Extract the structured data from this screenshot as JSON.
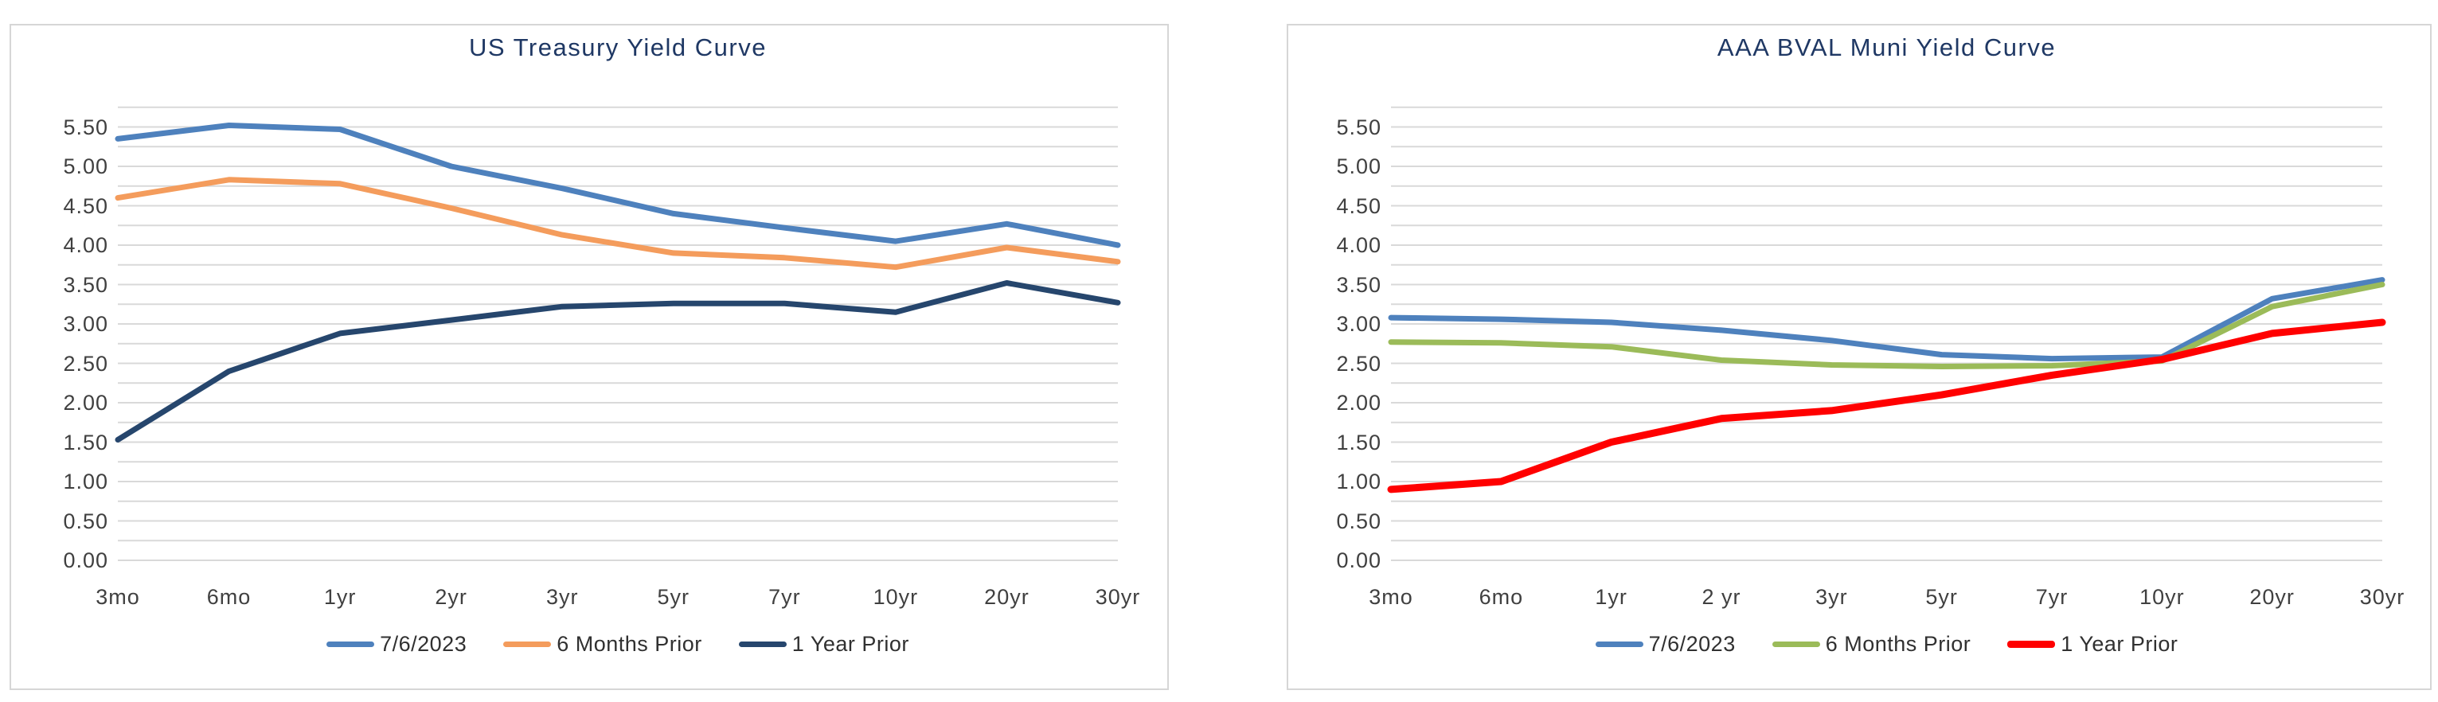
{
  "chart_data": [
    {
      "type": "line",
      "title": "US Treasury Yield Curve",
      "categories": [
        "3mo",
        "6mo",
        "1yr",
        "2yr",
        "3yr",
        "5yr",
        "7yr",
        "10yr",
        "20yr",
        "30yr"
      ],
      "y_axis": {
        "min": 0.0,
        "max": 5.75,
        "tick_labels": [
          "5.50",
          "5.00",
          "4.50",
          "4.00",
          "3.50",
          "3.00",
          "2.50",
          "2.00",
          "1.50",
          "1.00",
          "0.50",
          "0.00"
        ],
        "label_step": 0.5,
        "grid_step": 0.25,
        "grid": true
      },
      "legend_position": "bottom",
      "series": [
        {
          "name": "7/6/2023",
          "color": "#4E81BD",
          "stroke_width": 7,
          "values": [
            5.35,
            5.52,
            5.47,
            5.0,
            4.72,
            4.4,
            4.22,
            4.05,
            4.27,
            4.0
          ]
        },
        {
          "name": "6 Months Prior",
          "color": "#F49C5C",
          "stroke_width": 7,
          "values": [
            4.6,
            4.83,
            4.78,
            4.47,
            4.13,
            3.9,
            3.84,
            3.72,
            3.97,
            3.79
          ]
        },
        {
          "name": "1 Year Prior",
          "color": "#26466D",
          "stroke_width": 7,
          "values": [
            1.53,
            2.4,
            2.88,
            3.05,
            3.22,
            3.26,
            3.26,
            3.15,
            3.52,
            3.27
          ]
        }
      ]
    },
    {
      "type": "line",
      "title": "AAA BVAL Muni Yield Curve",
      "categories": [
        "3mo",
        "6mo",
        "1yr",
        "2 yr",
        "3yr",
        "5yr",
        "7yr",
        "10yr",
        "20yr",
        "30yr"
      ],
      "y_axis": {
        "min": 0.0,
        "max": 5.75,
        "tick_labels": [
          "5.50",
          "5.00",
          "4.50",
          "4.00",
          "3.50",
          "3.00",
          "2.50",
          "2.00",
          "1.50",
          "1.00",
          "0.50",
          "0.00"
        ],
        "label_step": 0.5,
        "grid_step": 0.25,
        "grid": true
      },
      "legend_position": "bottom",
      "series": [
        {
          "name": "7/6/2023",
          "color": "#4E81BD",
          "stroke_width": 7,
          "values": [
            3.08,
            3.06,
            3.02,
            2.92,
            2.79,
            2.61,
            2.56,
            2.58,
            3.32,
            3.56
          ]
        },
        {
          "name": "6 Months Prior",
          "color": "#9BBB59",
          "stroke_width": 7,
          "values": [
            2.77,
            2.76,
            2.71,
            2.54,
            2.48,
            2.46,
            2.47,
            2.53,
            3.22,
            3.5
          ]
        },
        {
          "name": "1 Year Prior",
          "color": "#FF0000",
          "stroke_width": 9,
          "values": [
            0.9,
            1.0,
            1.5,
            1.8,
            1.9,
            2.1,
            2.35,
            2.55,
            2.88,
            3.02
          ]
        }
      ]
    }
  ],
  "styles": {
    "title_color": "#1F3864",
    "axis_text_color": "#404040",
    "gridline_color": "#D9D9D9",
    "panel_border_color": "#D6D6D6",
    "background": "#FFFFFF"
  }
}
